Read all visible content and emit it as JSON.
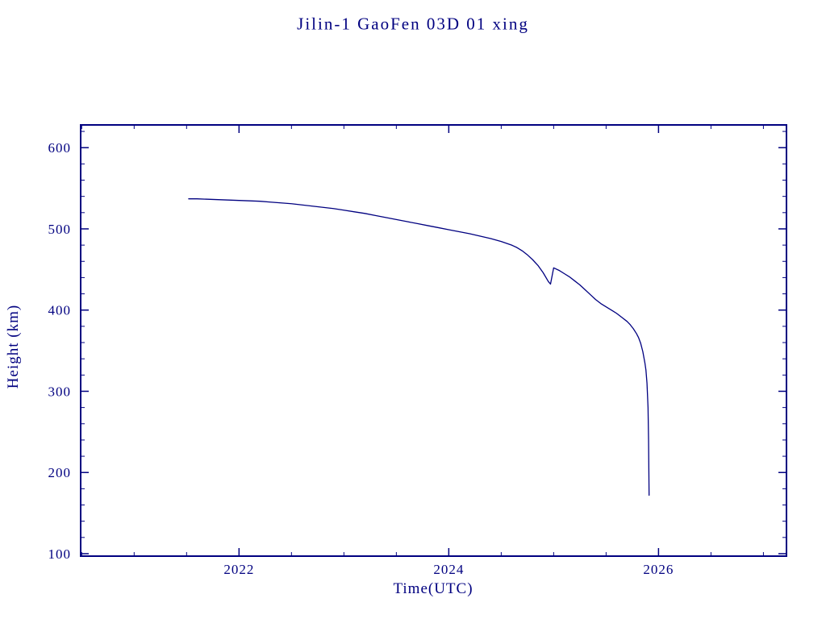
{
  "page": {
    "background_color": "#ffffff",
    "accent_color": "#000080"
  },
  "chart_data": {
    "type": "line",
    "title": "Jilin-1 GaoFen 03D 01 xing",
    "xlabel": "Time(UTC)",
    "ylabel": "Height (km)",
    "xlim": [
      2020.49,
      2027.22
    ],
    "ylim": [
      97,
      628
    ],
    "x_ticks": [
      2022,
      2024,
      2026
    ],
    "y_ticks": [
      100,
      200,
      300,
      400,
      500,
      600
    ],
    "x_minor_tick_step": 0.5,
    "y_minor_tick_step": 20,
    "grid": false,
    "legend": "none",
    "line_color": "#000080",
    "box_color": "#000080",
    "series": [
      {
        "name": "orbital-height",
        "points": [
          [
            2021.52,
            537
          ],
          [
            2021.6,
            537
          ],
          [
            2021.7,
            536.5
          ],
          [
            2021.8,
            536
          ],
          [
            2021.9,
            535.5
          ],
          [
            2022.0,
            535
          ],
          [
            2022.1,
            534.5
          ],
          [
            2022.2,
            534
          ],
          [
            2022.3,
            533
          ],
          [
            2022.4,
            532
          ],
          [
            2022.5,
            531
          ],
          [
            2022.6,
            529.5
          ],
          [
            2022.7,
            528
          ],
          [
            2022.8,
            526.5
          ],
          [
            2022.9,
            525
          ],
          [
            2023.0,
            523
          ],
          [
            2023.1,
            521
          ],
          [
            2023.2,
            519
          ],
          [
            2023.3,
            516.5
          ],
          [
            2023.4,
            514
          ],
          [
            2023.5,
            511.5
          ],
          [
            2023.6,
            509
          ],
          [
            2023.7,
            506.5
          ],
          [
            2023.8,
            504
          ],
          [
            2023.9,
            501.5
          ],
          [
            2024.0,
            499
          ],
          [
            2024.1,
            496.5
          ],
          [
            2024.2,
            494
          ],
          [
            2024.3,
            491
          ],
          [
            2024.4,
            488
          ],
          [
            2024.5,
            484.5
          ],
          [
            2024.6,
            480
          ],
          [
            2024.65,
            477
          ],
          [
            2024.7,
            473
          ],
          [
            2024.75,
            468
          ],
          [
            2024.8,
            462
          ],
          [
            2024.85,
            455
          ],
          [
            2024.9,
            446
          ],
          [
            2024.95,
            435
          ],
          [
            2024.97,
            432
          ],
          [
            2025.0,
            452
          ],
          [
            2025.05,
            449
          ],
          [
            2025.1,
            445
          ],
          [
            2025.15,
            441
          ],
          [
            2025.2,
            436
          ],
          [
            2025.25,
            431
          ],
          [
            2025.3,
            425
          ],
          [
            2025.35,
            419
          ],
          [
            2025.4,
            413
          ],
          [
            2025.45,
            408
          ],
          [
            2025.5,
            404
          ],
          [
            2025.55,
            400
          ],
          [
            2025.6,
            396
          ],
          [
            2025.65,
            391
          ],
          [
            2025.7,
            386
          ],
          [
            2025.73,
            382
          ],
          [
            2025.76,
            377
          ],
          [
            2025.79,
            371
          ],
          [
            2025.81,
            366
          ],
          [
            2025.83,
            359
          ],
          [
            2025.85,
            349
          ],
          [
            2025.87,
            335
          ],
          [
            2025.88,
            326
          ],
          [
            2025.89,
            310
          ],
          [
            2025.9,
            280
          ],
          [
            2025.905,
            240
          ],
          [
            2025.91,
            172
          ]
        ]
      }
    ]
  }
}
